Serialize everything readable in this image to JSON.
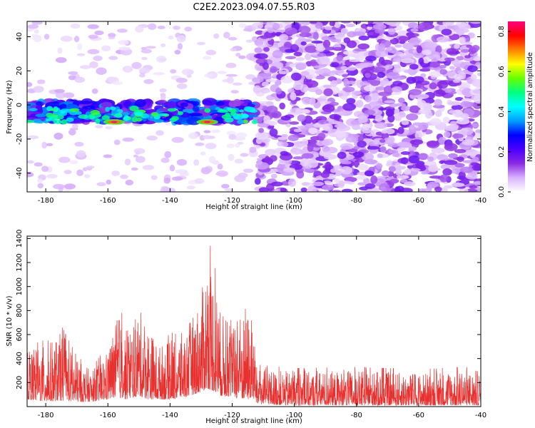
{
  "chart_data": [
    {
      "type": "heatmap",
      "title": "C2E2.2023.094.07.55.R03",
      "xlabel": "Height of straight line (km)",
      "ylabel": "Frequency (Hz)",
      "xlim": [
        -186,
        -40
      ],
      "ylim": [
        -51,
        49
      ],
      "xticks": [
        -180,
        -160,
        -140,
        -120,
        -100,
        -80,
        -60,
        -40
      ],
      "yticks": [
        -40,
        -20,
        0,
        20,
        40
      ],
      "colorbar": {
        "label": "Normalized spectral amplitude",
        "range": [
          0,
          0.85
        ],
        "ticks": [
          "0.0",
          "0.2",
          "0.4",
          "0.6",
          "0.8"
        ],
        "colors": [
          "#ffffff",
          "#d9b3ff",
          "#8a2be2",
          "#4b00ff",
          "#0000ff",
          "#00a0ff",
          "#00ffff",
          "#00ff80",
          "#66ff00",
          "#ffff00",
          "#ff8000",
          "#ff0000",
          "#ff0080"
        ]
      },
      "features": [
        {
          "band_frequency_hz": [
            -12,
            0
          ],
          "x_range_km": [
            -186,
            -112
          ],
          "peak_amplitude": 0.85,
          "peak_locations_km": [
            -158,
            -128
          ]
        },
        {
          "region": "scattered noise",
          "x_range_km": [
            -112,
            -40
          ],
          "typical_amplitude": 0.1
        }
      ],
      "grid": false
    },
    {
      "type": "line",
      "xlabel": "Height of straight line (km)",
      "ylabel": "SNR (10 * v/v)",
      "xlim": [
        -186,
        -40
      ],
      "ylim": [
        0,
        1420
      ],
      "xticks": [
        -180,
        -160,
        -140,
        -120,
        -100,
        -80,
        -60,
        -40
      ],
      "yticks": [
        200,
        400,
        600,
        800,
        1000,
        1200,
        1400
      ],
      "color": "#e8302e",
      "envelope": {
        "x": [
          -186,
          -180,
          -175,
          -170,
          -165,
          -160,
          -157,
          -154,
          -150,
          -147,
          -144,
          -140,
          -135,
          -130,
          -128,
          -126,
          -124,
          -120,
          -116,
          -113,
          -112,
          -100,
          -80,
          -60,
          -40
        ],
        "upper": [
          500,
          560,
          680,
          420,
          330,
          520,
          860,
          700,
          900,
          760,
          560,
          600,
          700,
          1000,
          1420,
          1250,
          900,
          700,
          950,
          720,
          350,
          320,
          330,
          310,
          340
        ],
        "lower": [
          60,
          40,
          50,
          40,
          40,
          60,
          80,
          60,
          90,
          60,
          60,
          60,
          80,
          120,
          150,
          130,
          90,
          80,
          60,
          60,
          20,
          10,
          10,
          10,
          10
        ]
      },
      "grid": false
    }
  ]
}
